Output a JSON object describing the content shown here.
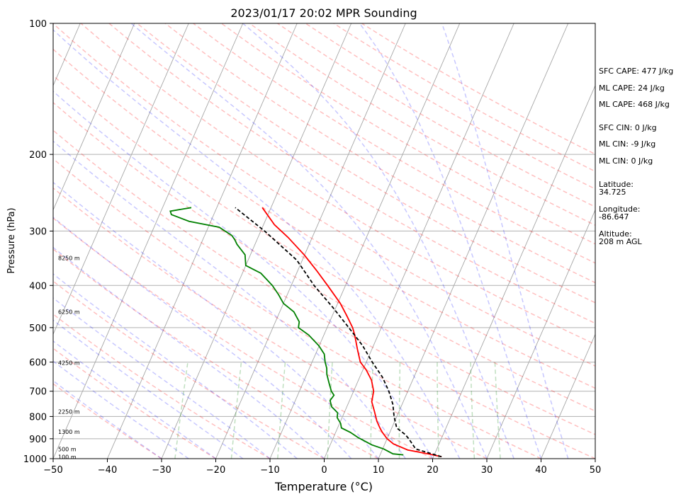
{
  "chart_data": {
    "type": "line",
    "title": "2023/01/17 20:02 MPR Sounding",
    "xlabel": "Temperature (°C)",
    "ylabel": "Pressure (hPa)",
    "xlim": [
      -50,
      50
    ],
    "ylim": [
      1000,
      100
    ],
    "y_scale": "log",
    "skew": true,
    "grid": true,
    "x_ticks": [
      "−50",
      "−40",
      "−30",
      "−20",
      "−10",
      "0",
      "10",
      "20",
      "30",
      "40",
      "50"
    ],
    "y_ticks": [
      "1000",
      "900",
      "800",
      "700",
      "600",
      "500",
      "400",
      "300",
      "200",
      "100"
    ],
    "altitude_labels": [
      {
        "text": "100 m",
        "p": 990
      },
      {
        "text": "500 m",
        "p": 950
      },
      {
        "text": "1300 m",
        "p": 868
      },
      {
        "text": "2250 m",
        "p": 780
      },
      {
        "text": "4250 m",
        "p": 602
      },
      {
        "text": "6250 m",
        "p": 460
      },
      {
        "text": "8250 m",
        "p": 346
      }
    ],
    "series": [
      {
        "kind": "temperature",
        "color": "#ff0000",
        "points": [
          [
            990,
            21.5
          ],
          [
            975,
            18.8
          ],
          [
            955,
            14.7
          ],
          [
            925,
            11.6
          ],
          [
            900,
            10.0
          ],
          [
            870,
            8.6
          ],
          [
            850,
            7.8
          ],
          [
            820,
            6.7
          ],
          [
            780,
            5.5
          ],
          [
            740,
            4.2
          ],
          [
            700,
            3.7
          ],
          [
            660,
            2.4
          ],
          [
            625,
            0.6
          ],
          [
            600,
            -1.1
          ],
          [
            560,
            -2.7
          ],
          [
            520,
            -4.3
          ],
          [
            500,
            -5.3
          ],
          [
            470,
            -7.3
          ],
          [
            440,
            -9.5
          ],
          [
            400,
            -13.3
          ],
          [
            370,
            -16.5
          ],
          [
            340,
            -20.1
          ],
          [
            310,
            -24.5
          ],
          [
            290,
            -28.0
          ],
          [
            265,
            -31.6
          ]
        ]
      },
      {
        "kind": "dewpoint",
        "color": "#008000",
        "points": [
          [
            980,
            14.3
          ],
          [
            975,
            12.3
          ],
          [
            950,
            10.2
          ],
          [
            930,
            7.7
          ],
          [
            905,
            5.5
          ],
          [
            895,
            4.6
          ],
          [
            870,
            2.7
          ],
          [
            850,
            0.7
          ],
          [
            830,
            0.2
          ],
          [
            805,
            -0.9
          ],
          [
            785,
            -1.2
          ],
          [
            760,
            -2.8
          ],
          [
            735,
            -3.6
          ],
          [
            715,
            -3.3
          ],
          [
            700,
            -4.1
          ],
          [
            670,
            -5.2
          ],
          [
            640,
            -6.3
          ],
          [
            620,
            -6.8
          ],
          [
            600,
            -7.6
          ],
          [
            575,
            -8.4
          ],
          [
            550,
            -10.1
          ],
          [
            520,
            -12.8
          ],
          [
            500,
            -15.3
          ],
          [
            485,
            -15.6
          ],
          [
            460,
            -17.4
          ],
          [
            440,
            -20.0
          ],
          [
            420,
            -21.6
          ],
          [
            400,
            -23.5
          ],
          [
            375,
            -26.6
          ],
          [
            360,
            -30.0
          ],
          [
            340,
            -31.0
          ],
          [
            322,
            -33.3
          ],
          [
            314,
            -34.1
          ],
          [
            307,
            -35.0
          ],
          [
            294,
            -38.0
          ],
          [
            285,
            -44.0
          ],
          [
            275,
            -47.8
          ],
          [
            270,
            -48.3
          ],
          [
            265,
            -44.7
          ]
        ]
      },
      {
        "kind": "parcel",
        "color": "#000000",
        "points": [
          [
            990,
            21.5
          ],
          [
            950,
            16.1
          ],
          [
            900,
            14.0
          ],
          [
            880,
            13.0
          ],
          [
            850,
            10.9
          ],
          [
            800,
            9.5
          ],
          [
            750,
            8.3
          ],
          [
            700,
            6.5
          ],
          [
            650,
            4.2
          ],
          [
            600,
            1.1
          ],
          [
            550,
            -2.0
          ],
          [
            500,
            -6.0
          ],
          [
            450,
            -10.5
          ],
          [
            400,
            -15.8
          ],
          [
            350,
            -21.0
          ],
          [
            300,
            -29.3
          ],
          [
            265,
            -36.6
          ]
        ]
      }
    ]
  },
  "indices": {
    "sfc_cape": "SFC CAPE: 477 J/kg",
    "ml_cape_1": "ML CAPE: 24 J/kg",
    "ml_cape_2": "ML CAPE: 468 J/kg",
    "sfc_cin": "SFC CIN: 0 J/kg",
    "ml_cin_1": "ML CIN: -9 J/kg",
    "ml_cin_2": "ML CIN: 0 J/kg",
    "latitude_label": "Latitude:",
    "latitude_value": "34.725",
    "longitude_label": "Longitude:",
    "longitude_value": "-86.647",
    "altitude_label": "Altitude:",
    "altitude_value": "208 m AGL"
  }
}
